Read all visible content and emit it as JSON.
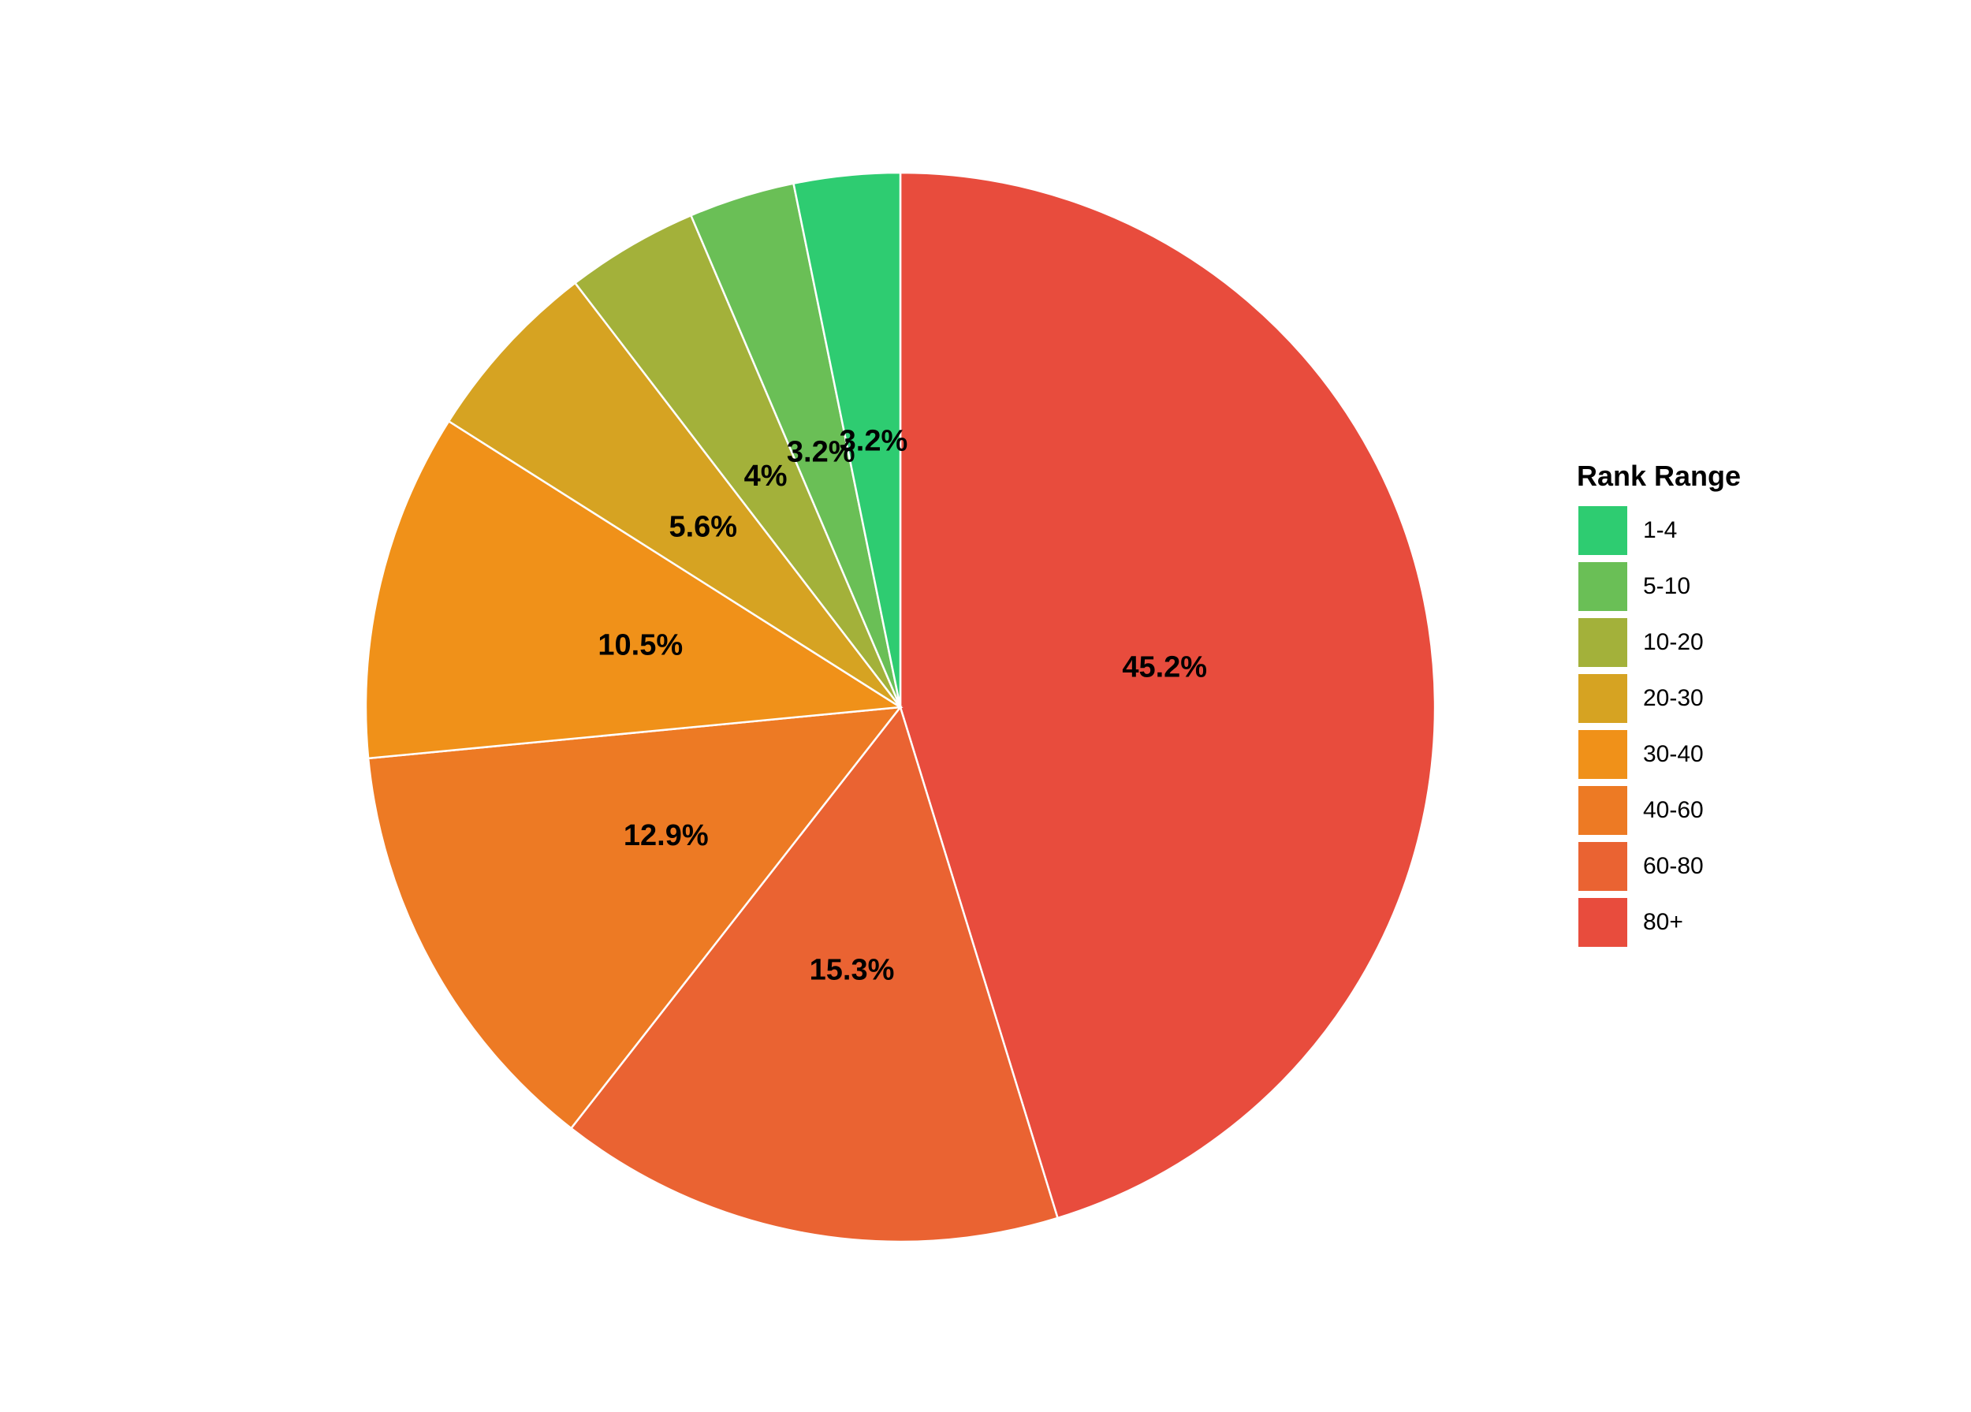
{
  "chart_data": {
    "type": "pie",
    "legend_title": "Rank Range",
    "legend_position": "right",
    "direction": "clockwise",
    "start": "top",
    "slices": [
      {
        "label": "80+",
        "value": 45.2,
        "display": "45.2%",
        "color": "#e84c3d"
      },
      {
        "label": "60-80",
        "value": 15.3,
        "display": "15.3%",
        "color": "#ea6332"
      },
      {
        "label": "40-60",
        "value": 12.9,
        "display": "12.9%",
        "color": "#ed7a24"
      },
      {
        "label": "30-40",
        "value": 10.5,
        "display": "10.5%",
        "color": "#f09119"
      },
      {
        "label": "20-30",
        "value": 5.6,
        "display": "5.6%",
        "color": "#d6a322"
      },
      {
        "label": "10-20",
        "value": 4.0,
        "display": "4%",
        "color": "#a3b13a"
      },
      {
        "label": "5-10",
        "value": 3.2,
        "display": "3.2%",
        "color": "#6abf56"
      },
      {
        "label": "1-4",
        "value": 3.2,
        "display": "3.2%",
        "color": "#2ecc71"
      }
    ],
    "legend_order": [
      "1-4",
      "5-10",
      "10-20",
      "20-30",
      "30-40",
      "40-60",
      "60-80",
      "80+"
    ]
  }
}
